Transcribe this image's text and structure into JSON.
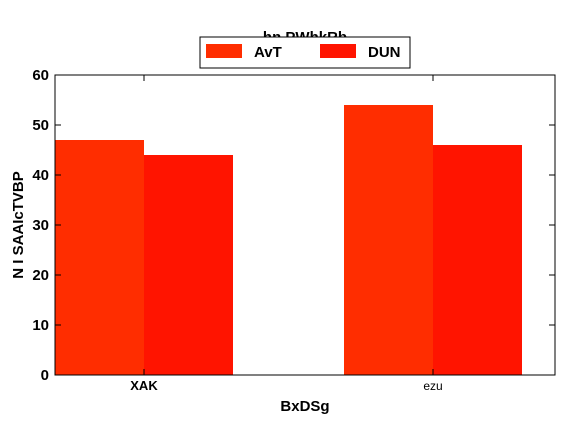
{
  "chart_data": {
    "type": "bar",
    "title": "hn PWhkRb",
    "xlabel": "BxDSg",
    "ylabel": "N I SAAIcTVBP",
    "categories": [
      "XAK",
      "ezu"
    ],
    "series": [
      {
        "name": "AvT",
        "values": [
          47,
          54
        ],
        "color": "#ff2d00"
      },
      {
        "name": "DUN",
        "values": [
          44,
          46
        ],
        "color": "#ff1400"
      }
    ],
    "ylim": [
      0,
      60
    ],
    "yticks": [
      0,
      10,
      20,
      30,
      40,
      50,
      60
    ],
    "grid": false,
    "legend_position": "top-center"
  }
}
